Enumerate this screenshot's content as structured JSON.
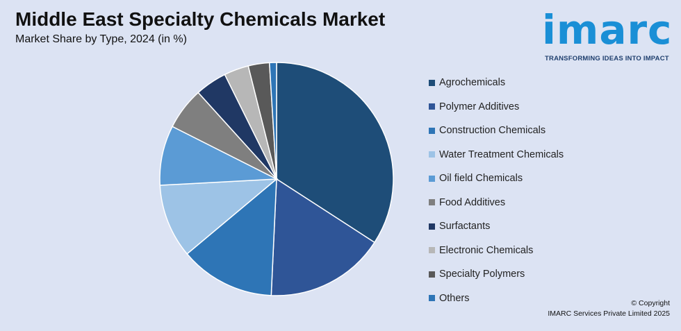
{
  "title": "Middle East Specialty Chemicals Market",
  "subtitle": "Market Share by Type, 2024 (in %)",
  "logo": {
    "name": "imarc",
    "tagline": "TRANSFORMING IDEAS INTO IMPACT"
  },
  "copyright": {
    "line1": "© Copyright",
    "line2": "IMARC Services Private Limited 2025"
  },
  "colors": {
    "background": "#dce3f3",
    "logo_blue": "#1a8fd6"
  },
  "chart_data": {
    "type": "pie",
    "title": "Middle East Specialty Chemicals Market",
    "legend_position": "right",
    "start_angle_deg": 0,
    "direction": "clockwise",
    "slices": [
      {
        "label": "Agrochemicals",
        "value": 35.0,
        "color": "#1e4d78"
      },
      {
        "label": "Polymer Additives",
        "value": 17.0,
        "color": "#2f5597"
      },
      {
        "label": "Construction Chemicals",
        "value": 13.5,
        "color": "#2e75b6"
      },
      {
        "label": "Water Treatment Chemicals",
        "value": 10.5,
        "color": "#9dc3e6"
      },
      {
        "label": "Oil field Chemicals",
        "value": 8.5,
        "color": "#5b9bd5"
      },
      {
        "label": "Food Additives",
        "value": 6.0,
        "color": "#7f7f7f"
      },
      {
        "label": "Surfactants",
        "value": 4.5,
        "color": "#203864"
      },
      {
        "label": "Electronic Chemicals",
        "value": 3.5,
        "color": "#b7b7b7"
      },
      {
        "label": "Specialty Polymers",
        "value": 3.0,
        "color": "#595959"
      },
      {
        "label": "Others",
        "value": 1.0,
        "color": "#2e75b6"
      }
    ]
  }
}
